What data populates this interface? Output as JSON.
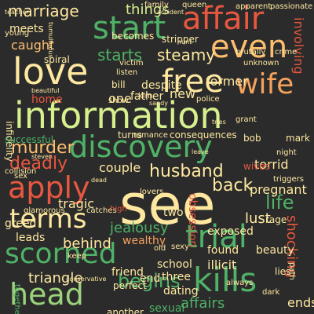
{
  "palette": {
    "background": "#2b2b2b",
    "red": "#e8573f",
    "orange": "#f5a25d",
    "lightorange": "#fdbf6f",
    "cream": "#fee8a0",
    "lightgreen": "#d7f08e",
    "green": "#9cd27b",
    "darkgreen": "#2e9e56",
    "midgreen": "#4fb267"
  },
  "words": [
    {
      "text": "see"
    },
    {
      "text": "information"
    },
    {
      "text": "love"
    },
    {
      "text": "affair"
    },
    {
      "text": "discovery"
    },
    {
      "text": "free"
    },
    {
      "text": "wife"
    },
    {
      "text": "start"
    },
    {
      "text": "even"
    },
    {
      "text": "trial"
    },
    {
      "text": "scorned"
    },
    {
      "text": "kills"
    },
    {
      "text": "head"
    },
    {
      "text": "terms"
    },
    {
      "text": "apply"
    },
    {
      "text": "husband"
    },
    {
      "text": "murder"
    },
    {
      "text": "deadly"
    },
    {
      "text": "back"
    },
    {
      "text": "life"
    },
    {
      "text": "begins"
    },
    {
      "text": "marriage"
    },
    {
      "text": "things"
    },
    {
      "text": "starts"
    },
    {
      "text": "steamy"
    },
    {
      "text": "involving"
    },
    {
      "text": "caught"
    },
    {
      "text": "former"
    },
    {
      "text": "one"
    },
    {
      "text": "new"
    },
    {
      "text": "torrid"
    },
    {
      "text": "pregnant"
    },
    {
      "text": "jealousy"
    },
    {
      "text": "lust"
    },
    {
      "text": "triangle"
    },
    {
      "text": "illicit"
    },
    {
      "text": "shocking"
    },
    {
      "text": "leads"
    },
    {
      "text": "behind"
    },
    {
      "text": "couple"
    },
    {
      "text": "affairs"
    },
    {
      "text": "ends"
    },
    {
      "text": "sexual"
    },
    {
      "text": "school"
    },
    {
      "text": "found"
    },
    {
      "text": "beauty"
    },
    {
      "text": "tragic"
    },
    {
      "text": "two"
    },
    {
      "text": "greed"
    },
    {
      "text": "wealthy"
    },
    {
      "text": "obsession"
    },
    {
      "text": "exposed"
    },
    {
      "text": "three"
    },
    {
      "text": "dating"
    },
    {
      "text": "friend"
    },
    {
      "text": "end"
    },
    {
      "text": "perfect"
    },
    {
      "text": "another"
    },
    {
      "text": "meets"
    },
    {
      "text": "young"
    },
    {
      "text": "becomes"
    },
    {
      "text": "stripper"
    },
    {
      "text": "despite"
    },
    {
      "text": "bill"
    },
    {
      "text": "father"
    },
    {
      "text": "home"
    },
    {
      "text": "infidelity"
    },
    {
      "text": "consequences"
    },
    {
      "text": "successful"
    },
    {
      "text": "turns"
    },
    {
      "text": "mark"
    },
    {
      "text": "bob"
    },
    {
      "text": "rage"
    },
    {
      "text": "wives"
    },
    {
      "text": "family"
    },
    {
      "text": "queen"
    },
    {
      "text": "apparent"
    },
    {
      "text": "passionate"
    },
    {
      "text": "brutally"
    },
    {
      "text": "crime"
    },
    {
      "text": "unknown"
    },
    {
      "text": "victim"
    },
    {
      "text": "spiral"
    },
    {
      "text": "listen"
    },
    {
      "text": "police"
    },
    {
      "text": "grant"
    },
    {
      "text": "romance"
    },
    {
      "text": "sex"
    },
    {
      "text": "collision"
    },
    {
      "text": "glamorous"
    },
    {
      "text": "catches"
    },
    {
      "text": "lovers"
    },
    {
      "text": "keep"
    },
    {
      "text": "sexy"
    },
    {
      "text": "lies"
    },
    {
      "text": "dark"
    },
    {
      "text": "together"
    },
    {
      "text": "always"
    },
    {
      "text": "path"
    },
    {
      "text": "conservative"
    },
    {
      "text": "old"
    },
    {
      "text": "high"
    },
    {
      "text": "kim"
    },
    {
      "text": "show"
    },
    {
      "text": "night"
    },
    {
      "text": "triggers"
    },
    {
      "text": "teacher"
    },
    {
      "text": "tumultuous"
    },
    {
      "text": "accident"
    },
    {
      "text": "hunt"
    },
    {
      "text": "beautiful"
    },
    {
      "text": "steven"
    },
    {
      "text": "leave"
    },
    {
      "text": "tries"
    },
    {
      "text": "dead"
    },
    {
      "text": "sandy"
    }
  ]
}
